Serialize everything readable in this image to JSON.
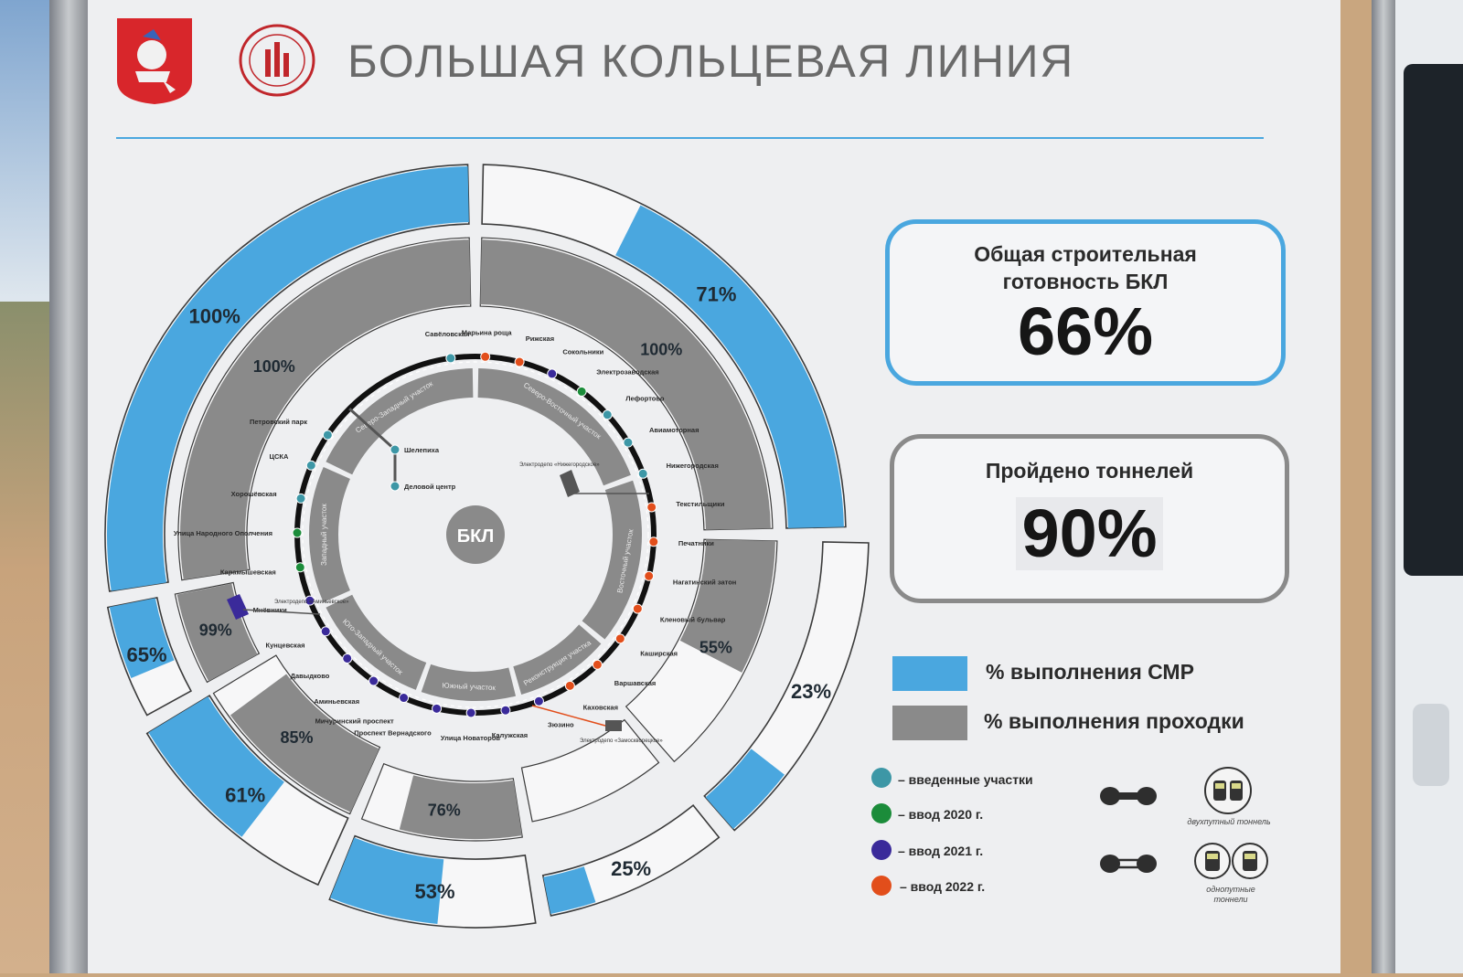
{
  "title": "БОЛЬШАЯ КОЛЬЦЕВАЯ ЛИНИЯ",
  "center_label": "БКЛ",
  "cards": [
    {
      "label": "Общая строительная готовность БКЛ",
      "value": "66%"
    },
    {
      "label": "Пройдено тоннелей",
      "value": "90%"
    }
  ],
  "legend": {
    "smr": {
      "label": "% выполнения СМР",
      "color": "#4aa7df"
    },
    "tunnel": {
      "label": "% выполнения проходки",
      "color": "#8a8a8a"
    }
  },
  "status_legend": [
    {
      "label": "– введенные участки",
      "color": "#3d97a6"
    },
    {
      "label": "– ввод 2020 г.",
      "color": "#1b8c3a"
    },
    {
      "label": "– ввод 2021 г.",
      "color": "#3a2a9a"
    },
    {
      "label": "– ввод 2022 г.",
      "color": "#e24e1b"
    }
  ],
  "tunnel_types": [
    {
      "label": "двухпутный тоннель"
    },
    {
      "label": "однопутные тоннели"
    }
  ],
  "segments": [
    {
      "smr": "100%",
      "tunnel": "100%"
    },
    {
      "smr": "71%",
      "tunnel": "100%"
    },
    {
      "smr": "23%",
      "tunnel": "55%"
    },
    {
      "smr": "25%",
      "tunnel": ""
    },
    {
      "smr": "53%",
      "tunnel": "76%"
    },
    {
      "smr": "61%",
      "tunnel": "85%"
    },
    {
      "smr": "65%",
      "tunnel": "99%"
    }
  ],
  "sections": [
    "Северо-Западный участок",
    "Северо-Восточный участок",
    "Восточный участок",
    "Реконструкция участка",
    "Южный участок",
    "Юго-Западный участок",
    "Западный участок"
  ],
  "stations": [
    {
      "name": "Савёловская",
      "status": "done"
    },
    {
      "name": "Марьина роща",
      "status": "2022"
    },
    {
      "name": "Рижская",
      "status": "2022"
    },
    {
      "name": "Сокольники",
      "status": "2021"
    },
    {
      "name": "Электрозаводская",
      "status": "2020"
    },
    {
      "name": "Лефортово",
      "status": "done"
    },
    {
      "name": "Авиамоторная",
      "status": "done"
    },
    {
      "name": "Нижегородская",
      "status": "done"
    },
    {
      "name": "Текстильщики",
      "status": "2022"
    },
    {
      "name": "Печатники",
      "status": "2022"
    },
    {
      "name": "Нагатинский затон",
      "status": "2022"
    },
    {
      "name": "Кленовый бульвар",
      "status": "2022"
    },
    {
      "name": "Каширская",
      "status": "2022"
    },
    {
      "name": "Варшавская",
      "status": "2022"
    },
    {
      "name": "Каховская",
      "status": "2022"
    },
    {
      "name": "Зюзино",
      "status": "2021"
    },
    {
      "name": "Калужская",
      "status": "2021"
    },
    {
      "name": "Улица Новаторов",
      "status": "2021"
    },
    {
      "name": "Проспект Вернадского",
      "status": "2021"
    },
    {
      "name": "Мичуринский проспект",
      "status": "2021"
    },
    {
      "name": "Аминьевская",
      "status": "2021"
    },
    {
      "name": "Давыдково",
      "status": "2021"
    },
    {
      "name": "Кунцевская",
      "status": "2021"
    },
    {
      "name": "Мнёвники",
      "status": "2021"
    },
    {
      "name": "Карамышевская",
      "status": "2020"
    },
    {
      "name": "Улица Народного Ополчения",
      "status": "2020"
    },
    {
      "name": "Хорошёвская",
      "status": "done"
    },
    {
      "name": "ЦСКА",
      "status": "done"
    },
    {
      "name": "Петровский парк",
      "status": "done"
    }
  ],
  "branch_stations": [
    "Шелепиха",
    "Деловой центр"
  ],
  "depots": [
    "Электродепо «Нижегородское»",
    "Электродепо «Аминьевское»",
    "Электродепо «Замоскворецкое»"
  ]
}
